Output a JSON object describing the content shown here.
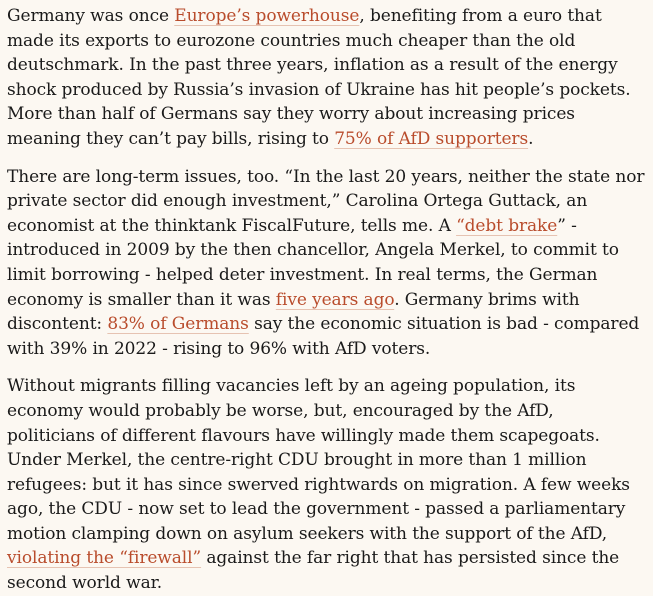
{
  "colors": {
    "background": "#fcf8f2",
    "text": "#1a1a1a",
    "link": "#b94c2c",
    "link_underline": "#e6c3b2"
  },
  "article": {
    "paragraphs": [
      {
        "segments": [
          {
            "type": "text",
            "text": "Germany was once "
          },
          {
            "type": "link",
            "name": "link-europes-powerhouse",
            "text": "Europe’s powerhouse"
          },
          {
            "type": "text",
            "text": ", benefiting from a euro that made its exports to eurozone countries much cheaper than the old deutschmark. In the past three years, inflation as a result of the energy shock produced by Russia’s invasion of Ukraine has hit people’s pockets. More than half of Germans say they worry about increasing prices meaning they can’t pay bills, rising to "
          },
          {
            "type": "link",
            "name": "link-75-percent-afd-supporters",
            "text": "75% of AfD supporters"
          },
          {
            "type": "text",
            "text": "."
          }
        ]
      },
      {
        "segments": [
          {
            "type": "text",
            "text": "There are long-term issues, too. “In the last 20 years, neither the state nor private sector did enough investment,” Carolina Ortega Guttack, an economist at the thinktank FiscalFuture, tells me. A "
          },
          {
            "type": "link",
            "name": "link-debt-brake",
            "text": "“debt brake"
          },
          {
            "type": "text",
            "text": "” - introduced in 2009 by the then chancellor, Angela Merkel, to commit to limit borrowing - helped deter investment. In real terms, the German economy is smaller than it was "
          },
          {
            "type": "link",
            "name": "link-five-years-ago",
            "text": "five years ago"
          },
          {
            "type": "text",
            "text": ". Germany brims with discontent: "
          },
          {
            "type": "link",
            "name": "link-83-percent-germans",
            "text": "83% of Germans"
          },
          {
            "type": "text",
            "text": " say the economic situation is bad - compared with 39% in 2022 - rising to 96% with AfD voters."
          }
        ]
      },
      {
        "segments": [
          {
            "type": "text",
            "text": "Without migrants filling vacancies left by an ageing population, its economy would probably be worse, but, encouraged by the AfD, politicians of different flavours have willingly made them scapegoats. Under Merkel, the centre-right CDU brought in more than 1 million refugees: but it has since swerved rightwards on migration. A few weeks ago, the CDU - now set to lead the government - passed a parliamentary motion clamping down on asylum seekers with the support of the AfD, "
          },
          {
            "type": "link",
            "name": "link-violating-the-firewall",
            "text": "violating the “firewall”"
          },
          {
            "type": "text",
            "text": " against the far right that has persisted since the second world war."
          }
        ]
      }
    ]
  }
}
